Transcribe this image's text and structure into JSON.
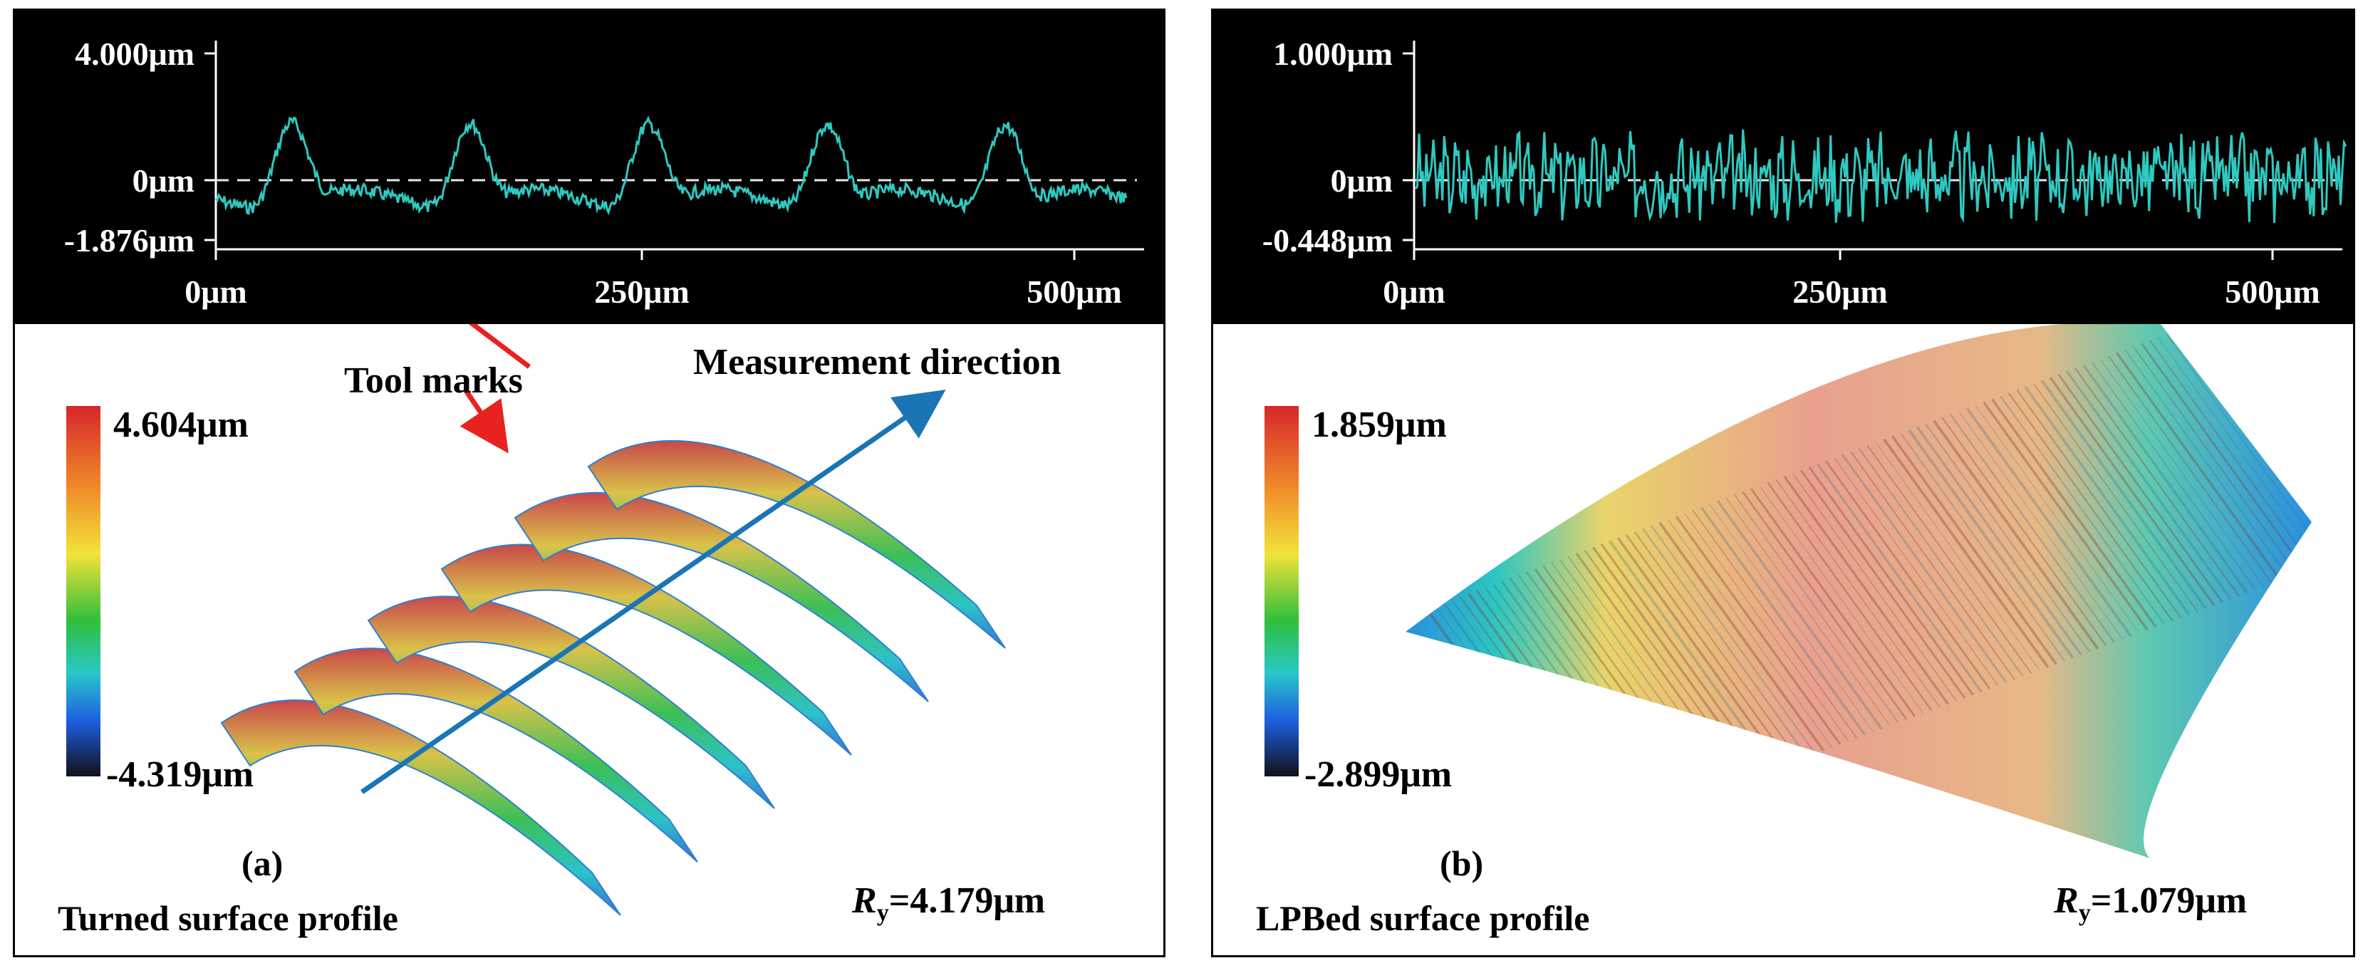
{
  "panels": {
    "a": {
      "profile": {
        "y_ticks": [
          "4.000μm",
          "0μm",
          "-1.876μm"
        ],
        "x_ticks": [
          "0μm",
          "250μm",
          "500μm"
        ]
      },
      "colorbar": {
        "max": "4.604μm",
        "min": "-4.319μm"
      },
      "annotations": {
        "tool_marks": "Tool marks",
        "direction": "Measurement direction"
      },
      "subfig_label": "(a)",
      "title": "Turned surface profile",
      "ry_symbol": "R",
      "ry_sub": "y",
      "ry_value": "=4.179μm"
    },
    "b": {
      "profile": {
        "y_ticks": [
          "1.000μm",
          "0μm",
          "-0.448μm"
        ],
        "x_ticks": [
          "0μm",
          "250μm",
          "500μm"
        ]
      },
      "colorbar": {
        "max": "1.859μm",
        "min": "-2.899μm"
      },
      "subfig_label": "(b)",
      "title": "LPBed surface profile",
      "ry_symbol": "R",
      "ry_sub": "y",
      "ry_value": "=1.079μm"
    }
  },
  "colors": {
    "profile_line": "#2fc9c0",
    "arrow_red": "#e8231f",
    "arrow_blue": "#1b75b5",
    "colormap": [
      "#d7262b",
      "#f08a2a",
      "#f2e33a",
      "#2fbf3a",
      "#29c7c8",
      "#1e5fe0",
      "#101018"
    ]
  }
}
